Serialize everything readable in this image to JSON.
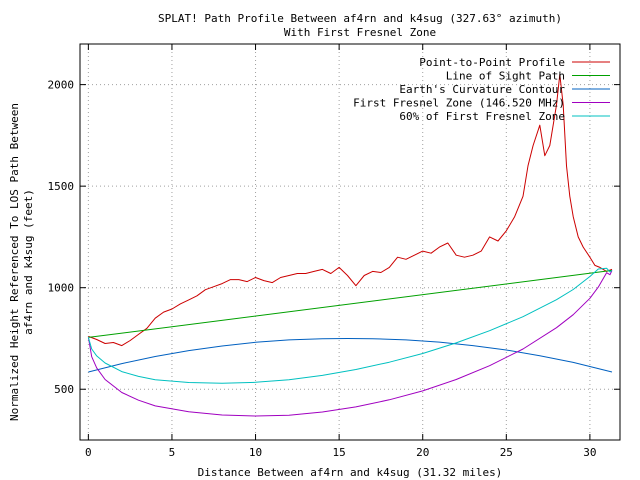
{
  "chart_data": {
    "type": "line",
    "title": "SPLAT! Path Profile Between af4rn and k4sug (327.63° azimuth)",
    "subtitle": "With First Fresnel Zone",
    "xlabel": "Distance Between af4rn and k4sug (31.32 miles)",
    "ylabel_line1": "Normalized Height Referenced To LOS Path Between",
    "ylabel_line2": "af4rn and k4sug (feet)",
    "xlim": [
      -0.5,
      31.8
    ],
    "ylim": [
      250,
      2200
    ],
    "grid": true,
    "legend_position": "top-right",
    "x_ticks": [
      0,
      5,
      10,
      15,
      20,
      25,
      30
    ],
    "y_ticks": [
      500,
      1000,
      1500,
      2000
    ],
    "x_tick_labels": [
      "0",
      "5",
      "10",
      "15",
      "20",
      "25",
      "30"
    ],
    "y_tick_labels": [
      "500",
      "1000",
      "1500",
      "2000"
    ],
    "series": [
      {
        "name": "Point-to-Point Profile",
        "color": "#cc0000",
        "x": [
          0,
          0.5,
          1,
          1.5,
          2,
          2.5,
          3,
          3.5,
          4,
          4.5,
          5,
          5.5,
          6,
          6.5,
          7,
          7.5,
          8,
          8.5,
          9,
          9.5,
          10,
          10.5,
          11,
          11.5,
          12,
          12.5,
          13,
          13.5,
          14,
          14.5,
          15,
          15.5,
          16,
          16.5,
          17,
          17.5,
          18,
          18.5,
          19,
          19.5,
          20,
          20.5,
          21,
          21.5,
          22,
          22.5,
          23,
          23.5,
          24,
          24.5,
          25,
          25.5,
          26,
          26.3,
          26.6,
          27,
          27.3,
          27.6,
          28,
          28.2,
          28.4,
          28.6,
          28.8,
          29,
          29.3,
          29.6,
          30,
          30.3,
          30.6,
          31,
          31.32
        ],
        "y": [
          760,
          745,
          725,
          730,
          715,
          740,
          770,
          800,
          850,
          880,
          895,
          920,
          940,
          960,
          990,
          1005,
          1020,
          1040,
          1040,
          1030,
          1050,
          1035,
          1025,
          1050,
          1060,
          1070,
          1070,
          1080,
          1090,
          1070,
          1100,
          1060,
          1010,
          1060,
          1080,
          1075,
          1100,
          1150,
          1140,
          1160,
          1180,
          1170,
          1200,
          1220,
          1160,
          1150,
          1160,
          1180,
          1250,
          1230,
          1280,
          1350,
          1450,
          1600,
          1700,
          1800,
          1650,
          1700,
          1900,
          2050,
          1900,
          1600,
          1450,
          1350,
          1250,
          1200,
          1150,
          1110,
          1100,
          1080,
          1090
        ]
      },
      {
        "name": "Line of Sight Path",
        "color": "#00a000",
        "x": [
          0,
          31.32
        ],
        "y": [
          755,
          1085
        ]
      },
      {
        "name": "Earth's Curvature Contour",
        "color": "#0060c0",
        "x": [
          0,
          2,
          4,
          6,
          8,
          10,
          12,
          14,
          15.5,
          17,
          19,
          21,
          23,
          25,
          27,
          29,
          31.32
        ],
        "y": [
          585,
          626,
          661,
          690,
          713,
          731,
          743,
          749,
          750,
          749,
          743,
          732,
          715,
          693,
          665,
          632,
          585
        ]
      },
      {
        "name": "First Fresnel Zone (146.520 MHz)",
        "color": "#a000c0",
        "x": [
          0,
          0.2,
          0.5,
          1,
          2,
          3,
          4,
          6,
          8,
          10,
          12,
          14,
          16,
          18,
          20,
          22,
          24,
          26,
          28,
          29,
          30,
          30.5,
          31,
          31.2,
          31.32
        ],
        "y": [
          755,
          660,
          605,
          548,
          484,
          446,
          418,
          389,
          373,
          368,
          372,
          388,
          413,
          448,
          492,
          548,
          616,
          698,
          803,
          867,
          948,
          1003,
          1074,
          1064,
          1085
        ]
      },
      {
        "name": "60% of First Fresnel Zone",
        "color": "#00c0c0",
        "x": [
          0,
          0.2,
          0.5,
          1,
          2,
          3,
          4,
          6,
          8,
          10,
          12,
          14,
          16,
          18,
          20,
          22,
          24,
          26,
          28,
          29,
          30,
          30.5,
          31,
          31.2,
          31.32
        ],
        "y": [
          755,
          698,
          664,
          629,
          587,
          563,
          547,
          533,
          529,
          534,
          547,
          568,
          597,
          633,
          676,
          728,
          788,
          857,
          941,
          991,
          1055,
          1092,
          1096,
          1078,
          1085
        ]
      }
    ]
  }
}
